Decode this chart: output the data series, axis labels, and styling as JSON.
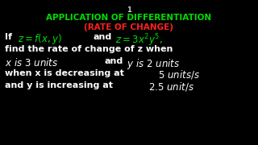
{
  "background_color": "#000000",
  "slide_number": "1",
  "title_line1": "APPLICATION OF DIFFERENTIATION",
  "title_line2": "(RATE OF CHANGE)",
  "title_color": "#00dd00",
  "subtitle_color": "#ff2020",
  "slide_number_color": "#cccccc",
  "body_color": "#ffffff",
  "formula_color": "#00dd00",
  "figsize": [
    3.2,
    1.8
  ],
  "dpi": 100
}
